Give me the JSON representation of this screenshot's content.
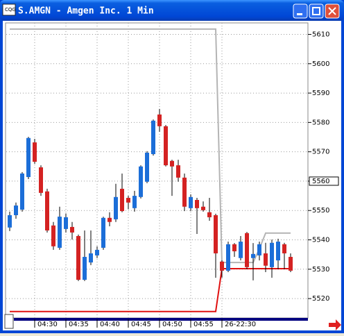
{
  "window": {
    "title": "S.AMGN - Amgen Inc. 1 Min"
  },
  "chart_data": {
    "type": "candlestick",
    "categories": [
      null,
      null,
      null,
      null,
      "04:30",
      null,
      null,
      null,
      null,
      "04:35",
      null,
      null,
      null,
      null,
      "04:40",
      null,
      null,
      null,
      null,
      "04:45",
      null,
      null,
      null,
      null,
      "04:50",
      null,
      null,
      null,
      null,
      "04:55",
      null,
      null,
      null,
      null,
      "26-22:30",
      null,
      null,
      null,
      null,
      null,
      null,
      null,
      null,
      null,
      null,
      null
    ],
    "open": [
      5544.2,
      5548.4,
      5550.3,
      5561.4,
      5573.2,
      5564.7,
      5556.5,
      5544.9,
      5537.3,
      5543.7,
      5544.4,
      5541.3,
      5526.4,
      5532.3,
      5534.7,
      5537.3,
      5547.5,
      5547.0,
      5557.4,
      5554.3,
      5550.8,
      5554.6,
      5559.8,
      5569.2,
      5582.7,
      5578.7,
      5566.9,
      5565.4,
      5561.2,
      5550.8,
      5553.6,
      5551.3,
      5549.4,
      5548.4,
      5532.6,
      5529.5,
      5538.5,
      5533.8,
      5542.3,
      5533.8,
      5534.7,
      5535.4,
      5530.7,
      5533.0,
      5538.5,
      5534.2
    ],
    "high": [
      5549.6,
      5552.7,
      5563.1,
      5575.1,
      5574.4,
      5565.4,
      5557.4,
      5546.1,
      5551.3,
      5549.0,
      5546.1,
      5541.8,
      5543.2,
      5543.2,
      5537.8,
      5547.9,
      5549.4,
      5559.1,
      5562.6,
      5555.0,
      5556.7,
      5565.4,
      5570.2,
      5581.0,
      5584.6,
      5579.1,
      5567.3,
      5567.3,
      5562.6,
      5555.5,
      5554.3,
      5553.1,
      5554.3,
      5548.9,
      5533.0,
      5539.4,
      5538.9,
      5541.3,
      5542.7,
      5538.9,
      5539.4,
      5539.0,
      5540.1,
      5540.4,
      5539.0,
      5535.4
    ],
    "low": [
      5543.0,
      5547.2,
      5549.6,
      5560.7,
      5565.9,
      5555.0,
      5542.5,
      5536.6,
      5536.6,
      5542.5,
      5540.1,
      5526.0,
      5526.0,
      5531.4,
      5533.8,
      5536.6,
      5544.6,
      5546.1,
      5549.4,
      5550.5,
      5549.6,
      5554.1,
      5559.3,
      5568.7,
      5576.8,
      5565.0,
      5555.0,
      5559.8,
      5549.8,
      5549.8,
      5542.0,
      5549.6,
      5546.5,
      5527.1,
      5527.1,
      5529.0,
      5534.2,
      5533.0,
      5530.0,
      5526.2,
      5533.0,
      5529.0,
      5527.1,
      5530.0,
      5530.0,
      5529.0
    ],
    "close": [
      5548.4,
      5551.7,
      5562.6,
      5574.7,
      5566.6,
      5556.0,
      5543.2,
      5537.8,
      5547.9,
      5547.7,
      5542.5,
      5526.4,
      5534.2,
      5535.4,
      5536.6,
      5547.5,
      5546.1,
      5554.6,
      5549.8,
      5552.7,
      5555.0,
      5565.0,
      5569.7,
      5580.6,
      5578.7,
      5565.4,
      5565.0,
      5561.2,
      5551.3,
      5554.6,
      5550.8,
      5550.1,
      5547.7,
      5535.4,
      5529.5,
      5538.5,
      5536.1,
      5539.4,
      5530.7,
      5535.2,
      5538.5,
      5531.2,
      5539.0,
      5539.4,
      5535.4,
      5529.5
    ],
    "up_color": "#1c6ed8",
    "down_color": "#d42222",
    "lines": [
      {
        "color": "#b4b4b4",
        "values": [
          5611.8,
          5611.8,
          5611.8,
          5611.8,
          5611.8,
          5611.8,
          5611.8,
          5611.8,
          5611.8,
          5611.8,
          5611.8,
          5611.8,
          5611.8,
          5611.8,
          5611.8,
          5611.8,
          5611.8,
          5611.8,
          5611.8,
          5611.8,
          5611.8,
          5611.8,
          5611.8,
          5611.8,
          5611.8,
          5611.8,
          5611.8,
          5611.8,
          5611.8,
          5611.8,
          5611.8,
          5611.8,
          5611.8,
          5611.8,
          5532.3,
          5532.3,
          5532.3,
          5532.3,
          5532.3,
          5532.3,
          5537.0,
          5542.3,
          5542.3,
          5542.3,
          5542.3,
          5542.3
        ]
      },
      {
        "color": "#e01010",
        "values": [
          5515.6,
          5515.6,
          5515.6,
          5515.6,
          5515.6,
          5515.6,
          5515.6,
          5515.6,
          5515.6,
          5515.6,
          5515.6,
          5515.6,
          5515.6,
          5515.6,
          5515.6,
          5515.6,
          5515.6,
          5515.6,
          5515.6,
          5515.6,
          5515.6,
          5515.6,
          5515.6,
          5515.6,
          5515.6,
          5515.6,
          5515.6,
          5515.6,
          5515.6,
          5515.6,
          5515.6,
          5515.6,
          5515.6,
          5515.6,
          5530.2,
          5530.2,
          5530.2,
          5530.2,
          5530.2,
          5530.2,
          5530.2,
          5530.2,
          5530.2,
          5530.2,
          5530.2,
          5530.2
        ]
      }
    ],
    "ylim": [
      5513.4,
      5613.9
    ],
    "yticks": [
      5520,
      5530,
      5540,
      5550,
      5560,
      5570,
      5580,
      5590,
      5600,
      5610
    ],
    "current_price": 5560,
    "grid": true
  }
}
